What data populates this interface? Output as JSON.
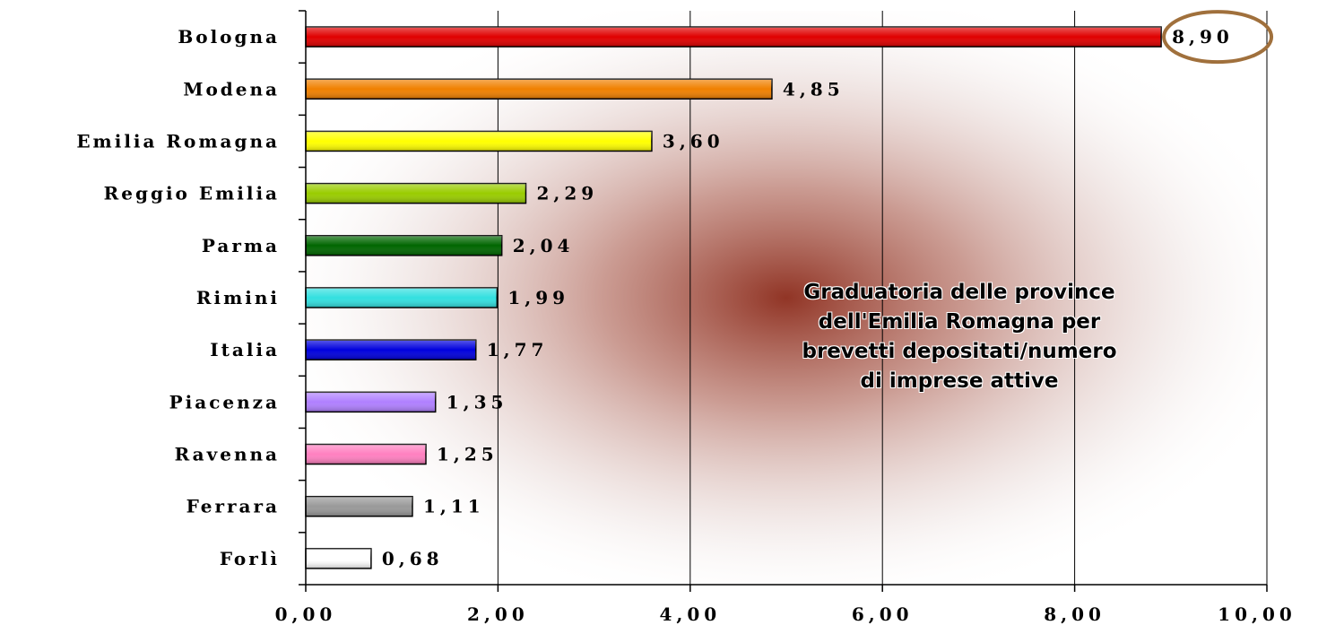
{
  "chart_data": {
    "type": "bar",
    "orientation": "horizontal",
    "categories": [
      "Bologna",
      "Modena",
      "Emilia Romagna",
      "Reggio Emilia",
      "Parma",
      "Rimini",
      "Italia",
      "Piacenza",
      "Ravenna",
      "Ferrara",
      "Forlì"
    ],
    "values": [
      8.9,
      4.85,
      3.6,
      2.29,
      2.04,
      1.99,
      1.77,
      1.35,
      1.25,
      1.11,
      0.68
    ],
    "value_labels": [
      "8,90",
      "4,85",
      "3,60",
      "2,29",
      "2,04",
      "1,99",
      "1,77",
      "1,35",
      "1,25",
      "1,11",
      "0,68"
    ],
    "bar_colors": [
      "#e00000",
      "#f08000",
      "#ffff00",
      "#99cc00",
      "#006600",
      "#33e0e0",
      "#0000dd",
      "#b080ff",
      "#ff80c0",
      "#999999",
      "#ffffff"
    ],
    "x_ticks": [
      "0,00",
      "2,00",
      "4,00",
      "6,00",
      "8,00",
      "10,00"
    ],
    "xlim": [
      0,
      10
    ],
    "grid": "vertical",
    "highlight": {
      "category": "Bologna",
      "shape": "ellipse",
      "color": "#a0703c"
    },
    "background_color": "#8b2a1a",
    "annotation": "Graduatoria delle province dell'Emilia Romagna per brevetti depositati/numero di imprese attive",
    "title": "",
    "xlabel": "",
    "ylabel": ""
  }
}
